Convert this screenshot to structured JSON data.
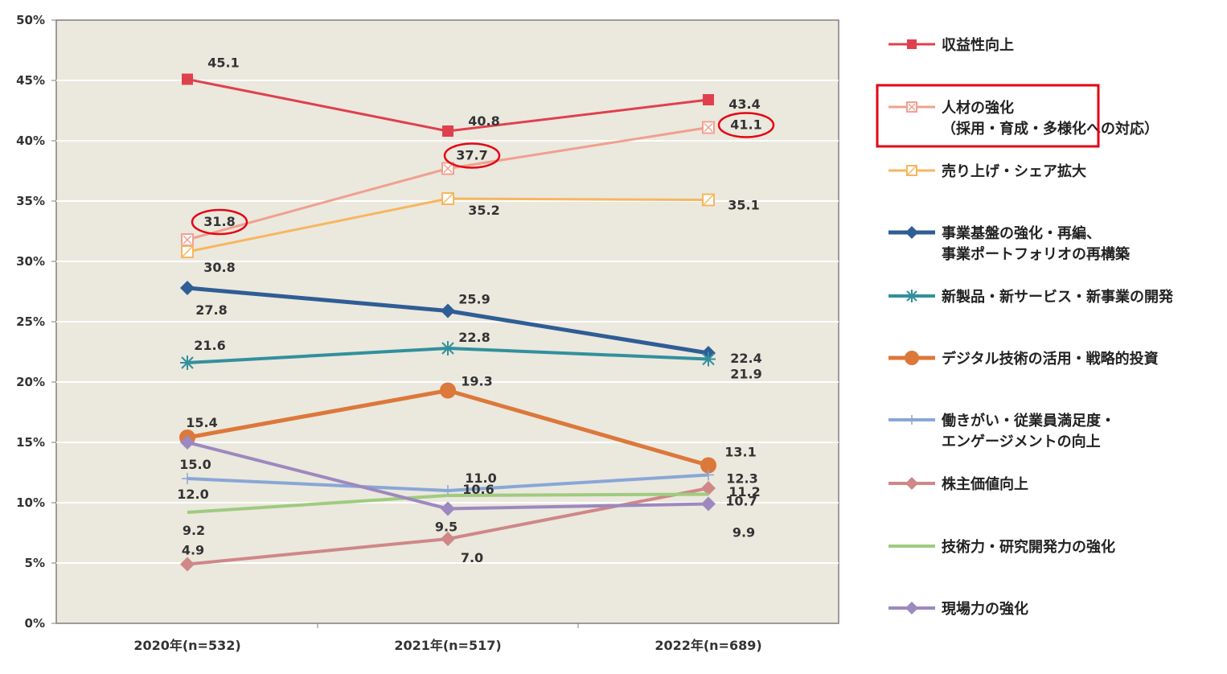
{
  "chart_data": {
    "type": "line",
    "title": "",
    "xlabel": "",
    "ylabel": "",
    "ylim": [
      0,
      50
    ],
    "y_ticks": [
      "0%",
      "5%",
      "10%",
      "15%",
      "20%",
      "25%",
      "30%",
      "35%",
      "40%",
      "45%",
      "50%"
    ],
    "grid": true,
    "legend_position": "right",
    "categories": [
      "2020年(n=532)",
      "2021年(n=517)",
      "2022年(n=689)"
    ],
    "series": [
      {
        "name": "収益性向上",
        "values": [
          45.1,
          40.8,
          43.4
        ],
        "labels": [
          "45.1",
          "40.8",
          "43.4"
        ],
        "color": "#e0404d",
        "marker": "square",
        "highlight": false
      },
      {
        "name": "人材の強化\n（採用・育成・多様化への対応）",
        "values": [
          31.8,
          37.7,
          41.1
        ],
        "labels": [
          "31.8",
          "37.7",
          "41.1"
        ],
        "color": "#f0a090",
        "marker": "square-x",
        "highlight": true
      },
      {
        "name": "売り上げ・シェア拡大",
        "values": [
          30.8,
          35.2,
          35.1
        ],
        "labels": [
          "30.8",
          "35.2",
          "35.1"
        ],
        "color": "#f7b65e",
        "marker": "square-open",
        "highlight": false
      },
      {
        "name": "事業基盤の強化・再編、\n事業ポートフォリオの再構築",
        "values": [
          27.8,
          25.9,
          22.4
        ],
        "labels": [
          "27.8",
          "25.9",
          "22.4"
        ],
        "color": "#2f5d95",
        "marker": "diamond",
        "highlight": false
      },
      {
        "name": "新製品・新サービス・新事業の開発",
        "values": [
          21.6,
          22.8,
          21.9
        ],
        "labels": [
          "21.6",
          "22.8",
          "21.9"
        ],
        "color": "#31909c",
        "marker": "star",
        "highlight": false
      },
      {
        "name": "デジタル技術の活用・戦略的投資",
        "values": [
          15.4,
          19.3,
          13.1
        ],
        "labels": [
          "15.4",
          "19.3",
          "13.1"
        ],
        "color": "#dc783a",
        "marker": "circle",
        "highlight": false
      },
      {
        "name": "働きがい・従業員満足度・\nエンゲージメントの向上",
        "values": [
          12.0,
          11.0,
          12.3
        ],
        "labels": [
          "12.0",
          "11.0",
          "12.3"
        ],
        "color": "#88a7d6",
        "marker": "plus",
        "highlight": false
      },
      {
        "name": "株主価値向上",
        "values": [
          4.9,
          7.0,
          11.2
        ],
        "labels": [
          "4.9",
          "7.0",
          "11.2"
        ],
        "color": "#cf8787",
        "marker": "diamond",
        "highlight": false
      },
      {
        "name": "技術力・研究開発力の強化",
        "values": [
          9.2,
          10.6,
          10.7
        ],
        "labels": [
          "9.2",
          "10.6",
          "10.7"
        ],
        "color": "#9fcb7f",
        "marker": "none",
        "highlight": false
      },
      {
        "name": "現場力の強化",
        "values": [
          15.0,
          9.5,
          9.9
        ],
        "labels": [
          "15.0",
          "9.5",
          "9.9"
        ],
        "color": "#9d88bf",
        "marker": "diamond",
        "highlight": false
      }
    ],
    "circled_labels": [
      {
        "series": 1,
        "point": 0
      },
      {
        "series": 1,
        "point": 1
      },
      {
        "series": 1,
        "point": 2
      }
    ]
  },
  "colors": {
    "plot_bg": "#ebe8de",
    "grid": "#ffffff",
    "highlight": "#e30613",
    "axis": "#7f7f7f"
  }
}
